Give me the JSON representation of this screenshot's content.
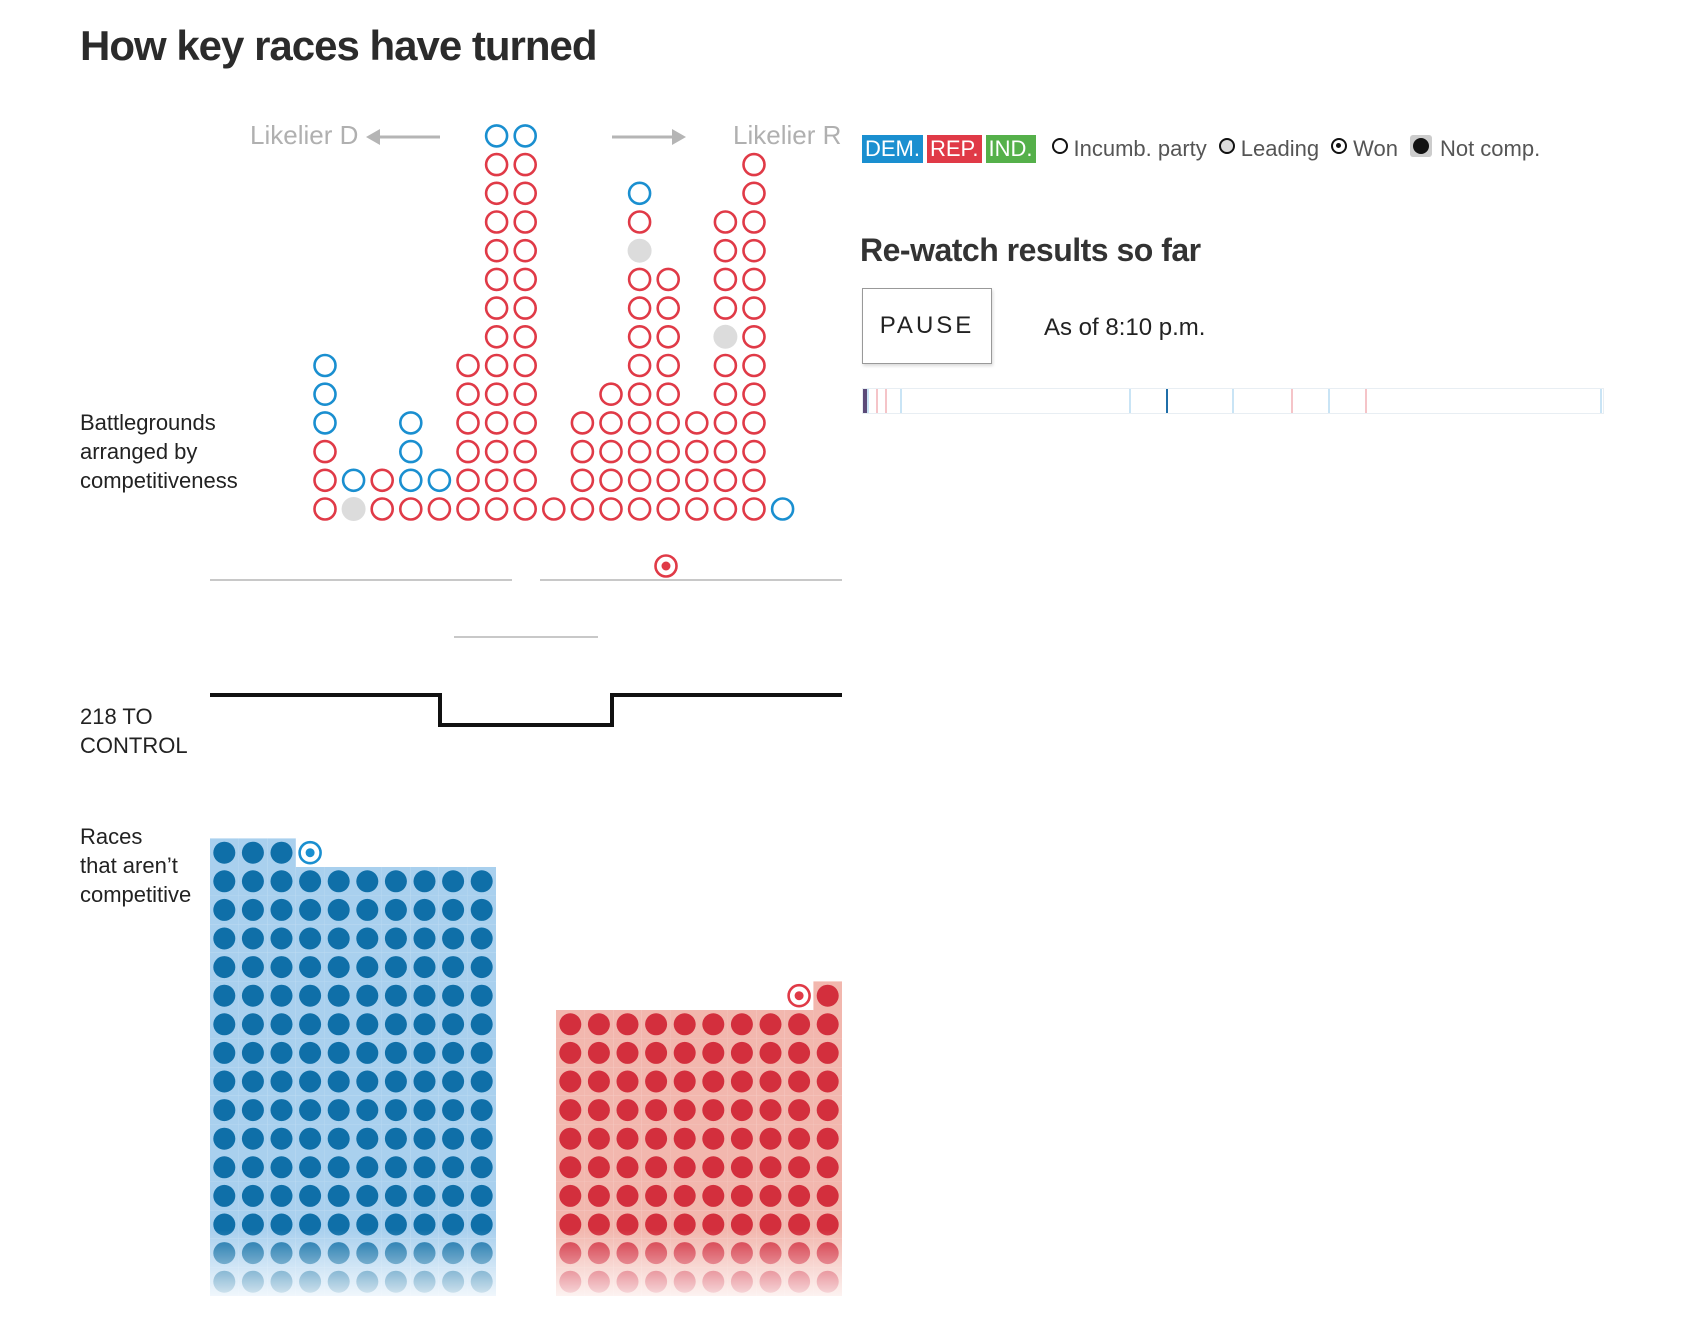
{
  "title": "How key races have turned",
  "labels": {
    "battlegrounds": [
      "Battlegrounds",
      "arranged by",
      "competitiveness"
    ],
    "control": [
      "218 TO",
      "CONTROL"
    ],
    "noncompetitive": [
      "Races",
      "that aren’t",
      "competitive"
    ],
    "likelier_d": "Likelier D",
    "likelier_r": "Likelier R"
  },
  "legend": {
    "dem": "DEM.",
    "rep": "REP.",
    "ind": "IND.",
    "incumbent": "Incumb. party",
    "leading": "Leading",
    "won": "Won",
    "not_competitive": "Not comp."
  },
  "colors": {
    "dem": "#1a8fd0",
    "rep": "#e03a47",
    "ind": "#55b04a",
    "dem_dark": "#0f6fa8",
    "rep_dark": "#d32f3d",
    "dem_bg": "#a9d0ee",
    "rep_bg": "#f2b7ae",
    "leading": "#dcdcdc"
  },
  "rewatch": {
    "title": "Re-watch results so far",
    "button": "PAUSE",
    "as_of": "As of 8:10 p.m."
  },
  "battleground_columns": [
    [
      "R",
      "R",
      "R",
      "D",
      "D",
      "D"
    ],
    [
      "L",
      "D"
    ],
    [
      "R",
      "R"
    ],
    [
      "R",
      "D",
      "D",
      "D"
    ],
    [
      "R",
      "D"
    ],
    [
      "R",
      "R",
      "R",
      "R",
      "R",
      "R"
    ],
    [
      "R",
      "R",
      "R",
      "R",
      "R",
      "R",
      "R",
      "R",
      "R",
      "R",
      "R",
      "R",
      "R",
      "D"
    ],
    [
      "R",
      "R",
      "R",
      "R",
      "R",
      "R",
      "R",
      "R",
      "R",
      "R",
      "R",
      "R",
      "R",
      "D"
    ],
    [
      "R"
    ],
    [
      "R",
      "R",
      "R",
      "R"
    ],
    [
      "R",
      "R",
      "R",
      "R",
      "R"
    ],
    [
      "R",
      "R",
      "R",
      "R",
      "R",
      "R",
      "R",
      "R",
      "R",
      "L",
      "R",
      "D"
    ],
    [
      "R",
      "R",
      "R",
      "R",
      "R",
      "R",
      "R",
      "R",
      "R"
    ],
    [
      "R",
      "R",
      "R",
      "R"
    ],
    [
      "R",
      "R",
      "R",
      "R",
      "R",
      "R",
      "L",
      "R",
      "R",
      "R",
      "R"
    ],
    [
      "R",
      "R",
      "R",
      "R",
      "R",
      "R",
      "R",
      "R",
      "R",
      "R",
      "R",
      "R",
      "R"
    ],
    [
      "D"
    ]
  ],
  "won_battleground": [
    "R"
  ],
  "noncompetitive": {
    "dem_seats": 153,
    "rep_seats": 101
  },
  "timeline_marks": [
    {
      "t": 0.0,
      "party": "R"
    },
    {
      "t": 0.006,
      "party": "D"
    },
    {
      "t": 0.018,
      "party": "R"
    },
    {
      "t": 0.03,
      "party": "R"
    },
    {
      "t": 0.05,
      "party": "D"
    },
    {
      "t": 0.36,
      "party": "D"
    },
    {
      "t": 0.41,
      "party": "D-strong"
    },
    {
      "t": 0.5,
      "party": "D"
    },
    {
      "t": 0.58,
      "party": "R"
    },
    {
      "t": 0.63,
      "party": "D"
    },
    {
      "t": 0.68,
      "party": "R"
    },
    {
      "t": 0.998,
      "party": "D"
    }
  ]
}
